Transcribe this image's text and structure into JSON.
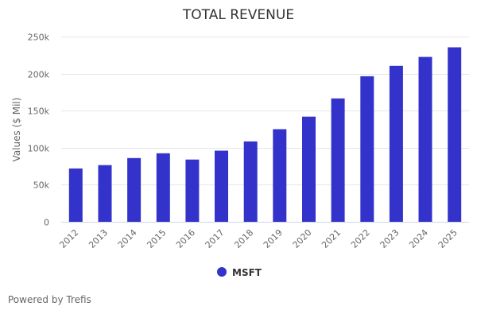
{
  "chart_data": {
    "type": "bar",
    "title": "TOTAL REVENUE",
    "xlabel": "",
    "ylabel": "Values ($ Mil)",
    "categories": [
      "2012",
      "2013",
      "2014",
      "2015",
      "2016",
      "2017",
      "2018",
      "2019",
      "2020",
      "2021",
      "2022",
      "2023",
      "2024",
      "2025"
    ],
    "series": [
      {
        "name": "MSFT",
        "color": "#3333cc",
        "values": [
          72000,
          76500,
          86000,
          92500,
          84000,
          96000,
          108500,
          125000,
          142000,
          166500,
          196500,
          210500,
          222500,
          235500
        ]
      }
    ],
    "ylim": [
      0,
      250000
    ],
    "yticks": [
      0,
      50000,
      100000,
      150000,
      200000,
      250000
    ],
    "ytick_labels": [
      "0",
      "50k",
      "100k",
      "150k",
      "200k",
      "250k"
    ],
    "grid": true,
    "legend_position": "bottom-center",
    "gridline_color": "#e6e6e6",
    "axis_color": "#ccd6eb"
  },
  "footer": {
    "credit": "Powered by Trefis"
  }
}
